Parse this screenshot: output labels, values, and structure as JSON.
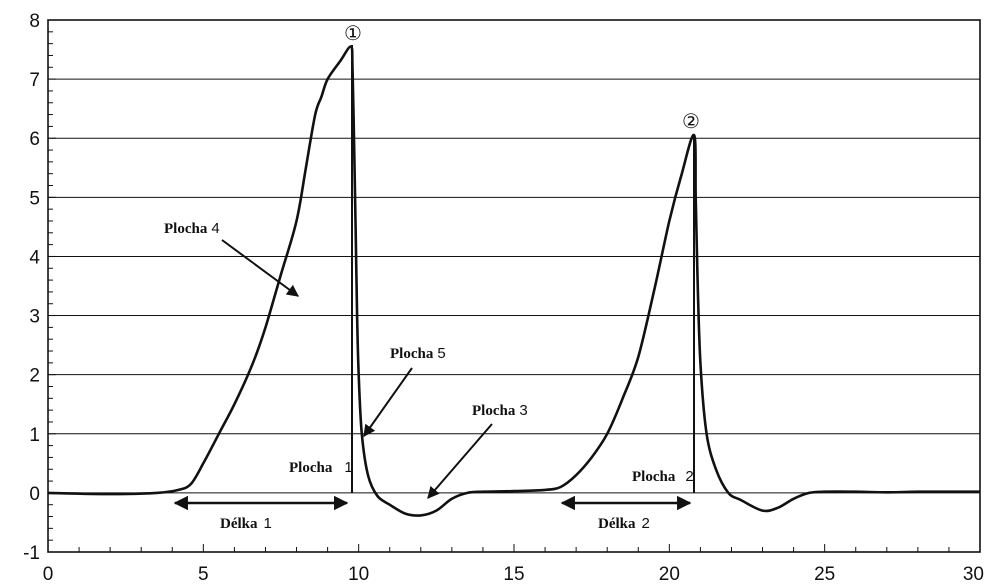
{
  "chart_data": {
    "type": "line",
    "title": "",
    "xlabel": "",
    "ylabel": "",
    "xlim": [
      0,
      30
    ],
    "ylim": [
      -1,
      8
    ],
    "xticks": [
      "0",
      "5",
      "10",
      "15",
      "20",
      "25",
      "30"
    ],
    "yticks": [
      "-1",
      "0",
      "1",
      "2",
      "3",
      "4",
      "5",
      "6",
      "7",
      "8"
    ],
    "grid": "horizontal",
    "legend": "none",
    "series": [
      {
        "x": [
          0,
          2,
          3.5,
          4.2,
          4.6,
          5,
          5.5,
          6,
          6.6,
          7,
          7.5,
          8,
          8.3,
          8.6,
          8.8,
          9,
          9.4,
          9.75,
          9.8,
          9.85,
          9.9,
          9.95,
          10.0,
          10.1,
          10.3,
          10.6,
          11,
          11.5,
          12,
          12.5,
          13,
          13.5,
          14,
          15,
          16,
          16.5,
          17,
          17.5,
          18,
          18.5,
          19,
          19.5,
          20,
          20.4,
          20.8,
          20.85,
          20.9,
          21,
          21.2,
          21.5,
          21.9,
          22.3,
          23,
          23.5,
          24,
          24.5,
          25,
          26,
          27,
          28,
          29,
          30
        ],
        "y": [
          0,
          -0.02,
          0,
          0.05,
          0.15,
          0.5,
          1.0,
          1.5,
          2.2,
          2.8,
          3.7,
          4.6,
          5.5,
          6.4,
          6.7,
          7.0,
          7.3,
          7.55,
          7.2,
          6.0,
          4.5,
          3.0,
          2.0,
          1.0,
          0.3,
          -0.05,
          -0.2,
          -0.35,
          -0.38,
          -0.3,
          -0.1,
          0.0,
          0.02,
          0.03,
          0.05,
          0.1,
          0.3,
          0.6,
          1.0,
          1.6,
          2.3,
          3.4,
          4.6,
          5.4,
          6.05,
          5.0,
          3.8,
          2.2,
          1.0,
          0.4,
          0.0,
          -0.12,
          -0.3,
          -0.25,
          -0.1,
          0.0,
          0.02,
          0.02,
          0.01,
          0.02,
          0.02,
          0.02
        ]
      }
    ],
    "peaks": [
      {
        "label": "①",
        "x": 9.75,
        "y": 7.55
      },
      {
        "label": "②",
        "x": 20.8,
        "y": 6.05
      }
    ],
    "annotations": {
      "plocha4": {
        "word": "Plocha",
        "num": "4"
      },
      "plocha5": {
        "word": "Plocha",
        "num": "5"
      },
      "plocha3": {
        "word": "Plocha",
        "num": "3"
      },
      "plocha1": {
        "word": "Plocha",
        "num": "1"
      },
      "plocha2": {
        "word": "Plocha",
        "num": "2"
      },
      "delka1": {
        "word": "Délka",
        "num": "1"
      },
      "delka2": {
        "word": "Délka",
        "num": "2"
      }
    }
  }
}
